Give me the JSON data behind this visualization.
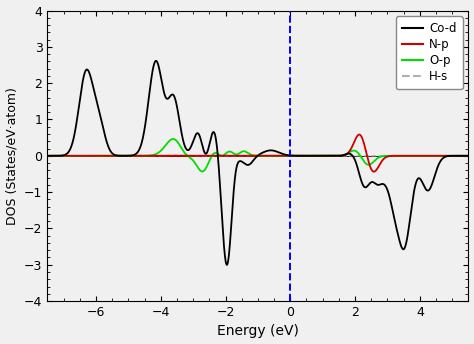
{
  "title": "",
  "xlabel": "Energy (eV)",
  "ylabel": "DOS (States/eV·atom)",
  "xlim": [
    -7.5,
    5.5
  ],
  "ylim": [
    -4,
    4
  ],
  "xticks": [
    -6,
    -4,
    -2,
    0,
    2,
    4
  ],
  "yticks": [
    -4,
    -3,
    -2,
    -1,
    0,
    1,
    2,
    3,
    4
  ],
  "fermi_energy": 0.0,
  "background_color": "#f0f0f0"
}
